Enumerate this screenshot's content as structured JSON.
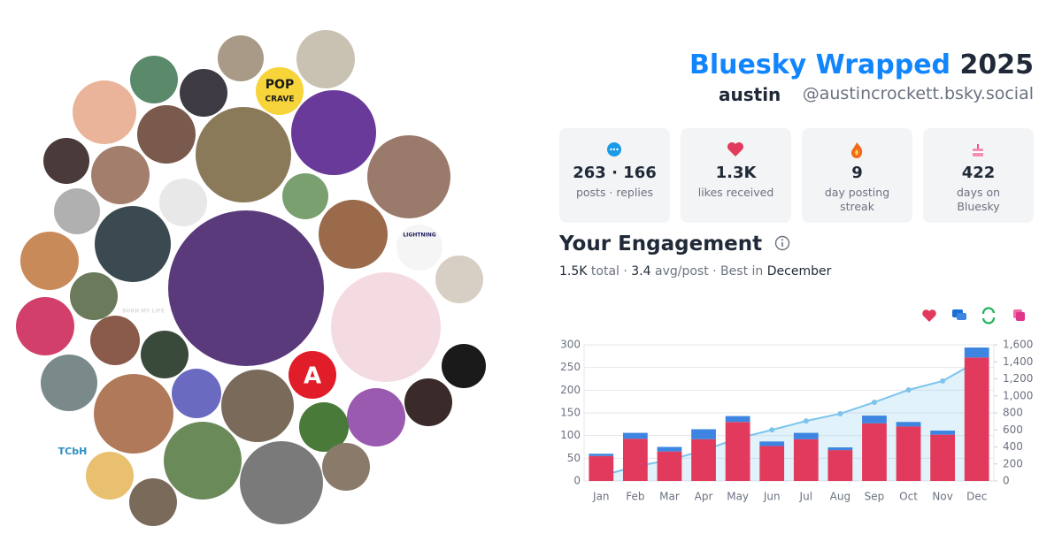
{
  "header": {
    "title": "Bluesky Wrapped",
    "year": "2025",
    "display_name": "austin",
    "handle": "@austincrockett.bsky.social"
  },
  "avatar_texts": [
    "POP",
    "CRAVE",
    "A",
    "TCbH",
    "LIGHTNING",
    "BURN MY LIFE"
  ],
  "stats": [
    {
      "value": "263 · 166",
      "label": "posts · replies"
    },
    {
      "value": "1.3K",
      "label": "likes received"
    },
    {
      "value": "9",
      "label": "day posting streak"
    },
    {
      "value": "422",
      "label": "days on Bluesky"
    }
  ],
  "engagement": {
    "heading": "Your Engagement",
    "total": "1.5K",
    "total_text": "total ·",
    "avg": "3.4",
    "avg_text": "avg/post · Best in",
    "best": "December"
  },
  "chart_data": {
    "type": "bar",
    "stacked": true,
    "grid": true,
    "categories": [
      "Jan",
      "Feb",
      "Mar",
      "Apr",
      "May",
      "Jun",
      "Jul",
      "Aug",
      "Sep",
      "Oct",
      "Nov",
      "Dec"
    ],
    "series": [
      {
        "color": "#e23a5c",
        "values": [
          55,
          93,
          65,
          92,
          130,
          77,
          92,
          68,
          127,
          120,
          102,
          272
        ]
      },
      {
        "color": "#3d85e0",
        "values": [
          5,
          13,
          10,
          22,
          13,
          10,
          14,
          6,
          17,
          10,
          9,
          22
        ]
      },
      {
        "type": "line",
        "axis": "y2",
        "color": "#7cc4ec",
        "values": [
          60,
          170,
          245,
          360,
          500,
          600,
          705,
          790,
          925,
          1070,
          1175,
          1400
        ]
      }
    ],
    "ylim": [
      0,
      300
    ],
    "yticks": [
      0,
      50,
      100,
      150,
      200,
      250,
      300
    ],
    "y2lim": [
      0,
      1600
    ],
    "y2ticks": [
      0,
      200,
      400,
      600,
      800,
      {
        "value": 1000,
        "label": "1,000"
      },
      {
        "value": 1200,
        "label": "1,200"
      },
      {
        "value": 1400,
        "label": "1,400"
      },
      {
        "value": 1600,
        "label": "1,600"
      }
    ]
  }
}
